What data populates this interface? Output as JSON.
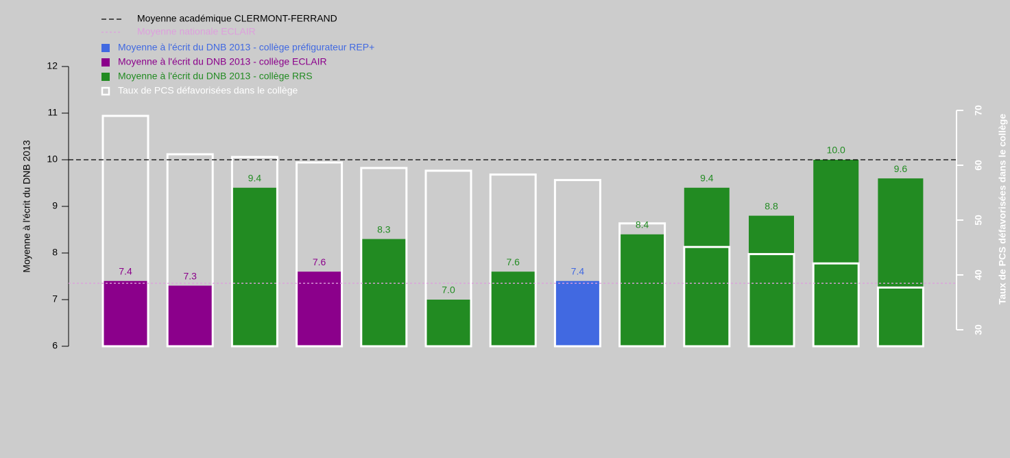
{
  "chart_data": {
    "type": "bar",
    "ylabel": "Moyenne à l'écrit du DNB 2013",
    "y2label": "Taux de PCS défavorisées dans le collège",
    "ylim": [
      6,
      12
    ],
    "yticks": [
      6,
      7,
      8,
      9,
      10,
      11,
      12
    ],
    "y2lim": [
      27,
      78
    ],
    "y2ticks": [
      30,
      40,
      50,
      60,
      70
    ],
    "hlines": [
      {
        "name": "Moyenne académique CLERMONT-FERRAND",
        "value": 10,
        "color": "#000000",
        "style": "dashed"
      },
      {
        "name": "Moyenne nationale ECLAIR",
        "value": 7.35,
        "color": "#dda0dd",
        "style": "dotted"
      }
    ],
    "series": [
      {
        "name": "Moyenne à l'écrit du DNB 2013 - collège préfigurateur REP+",
        "color": "#4169e1",
        "values": [
          null,
          null,
          null,
          null,
          null,
          null,
          null,
          7.4,
          null,
          null,
          null,
          null,
          null
        ],
        "value_labels": [
          null,
          null,
          null,
          null,
          null,
          null,
          null,
          "7.4",
          null,
          null,
          null,
          null,
          null
        ]
      },
      {
        "name": "Moyenne à l'écrit du DNB 2013 - collège ECLAIR",
        "color": "#8b008b",
        "values": [
          7.4,
          7.3,
          null,
          7.6,
          null,
          null,
          null,
          null,
          null,
          null,
          null,
          null,
          null
        ],
        "value_labels": [
          "7.4",
          "7.3",
          null,
          "7.6",
          null,
          null,
          null,
          null,
          null,
          null,
          null,
          null,
          null
        ]
      },
      {
        "name": "Moyenne à l'écrit du DNB 2013 - collège RRS",
        "color": "#228b22",
        "values": [
          null,
          null,
          9.4,
          null,
          8.3,
          7.0,
          7.6,
          null,
          8.4,
          9.4,
          8.8,
          10.0,
          9.6
        ],
        "value_labels": [
          null,
          null,
          "9.4",
          null,
          "8.3",
          "7.0",
          "7.6",
          null,
          "8.4",
          "9.4",
          "8.8",
          "10.0",
          "9.6"
        ]
      },
      {
        "name": "Taux de PCS défavorisées dans le collège",
        "color": "#ffffff",
        "axis": "y2",
        "style": "outline",
        "values": [
          69,
          62,
          61.5,
          60.5,
          59.5,
          59,
          58.3,
          57.3,
          49.4,
          45.1,
          43.8,
          42.1,
          37.7
        ]
      }
    ]
  }
}
